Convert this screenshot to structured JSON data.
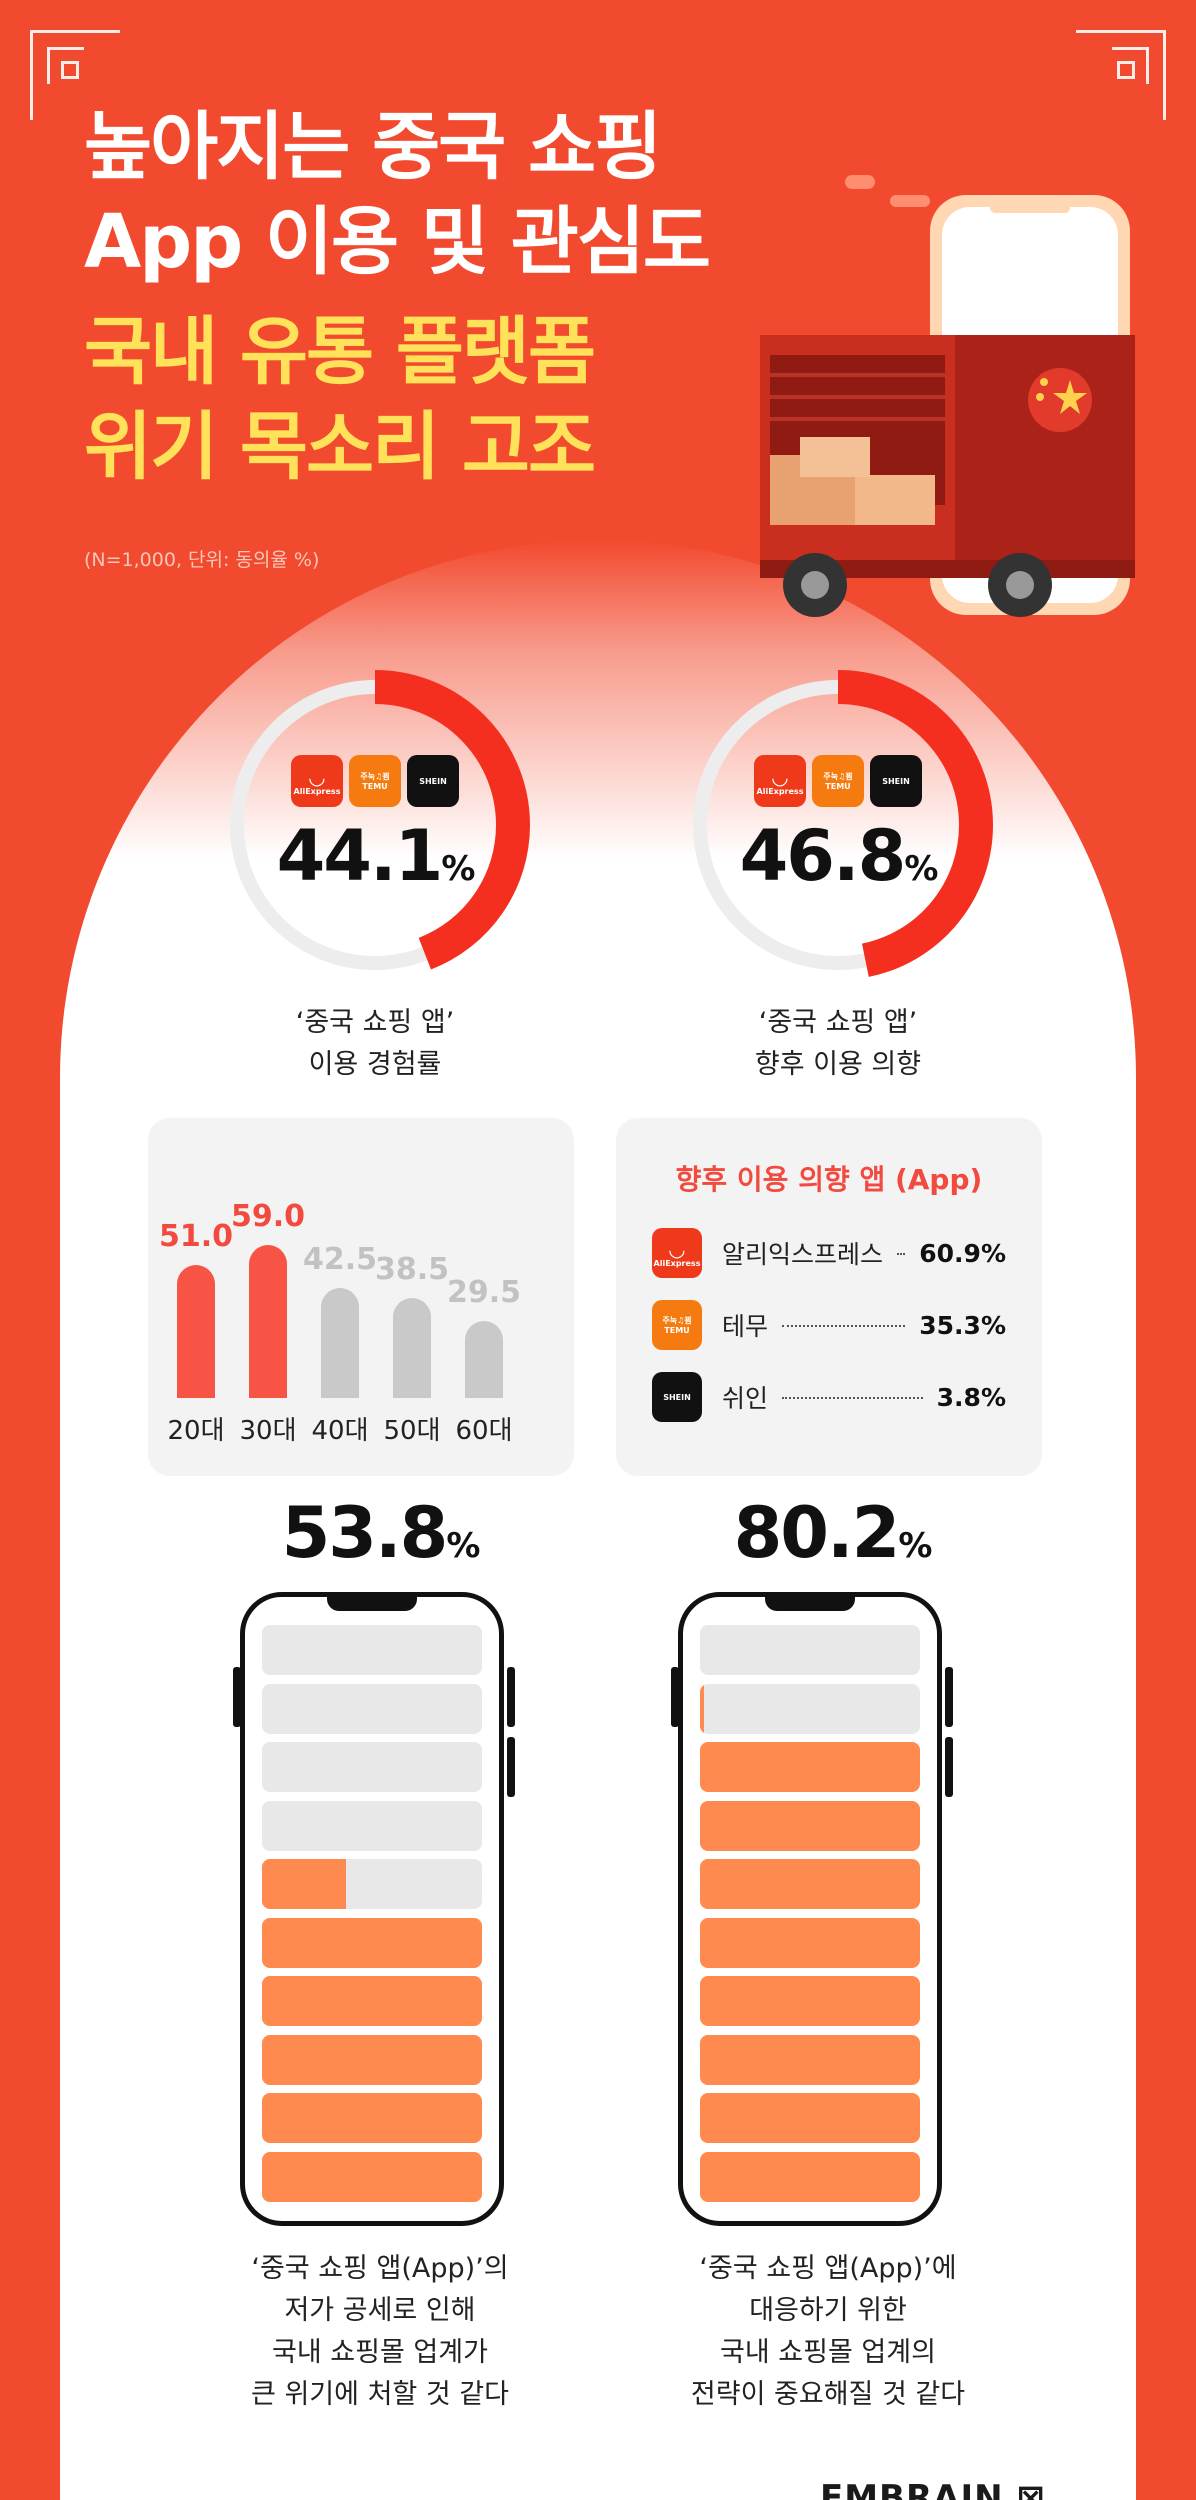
{
  "headline": {
    "line1": "높아지는 중국 쇼핑",
    "line2": "App 이용 및 관심도",
    "line3": "국내 유통 플랫폼",
    "line4": "위기 목소리 고조"
  },
  "note": "(N=1,000, 단위: 동의율 %)",
  "colors": {
    "background": "#f24a2e",
    "accent": "#ffe15a",
    "bar_highlight": "#f75445",
    "fill": "#ff8a4f"
  },
  "logos": {
    "ali_text": "AliExpress",
    "temu_text": "TEMU",
    "temu_top": "주눅♫꾐",
    "shein_text": "SHEIN"
  },
  "donut1": {
    "value": "44.1",
    "unit": "%",
    "fraction": 0.441,
    "caption_line1": "‘중국 쇼핑 앱’",
    "caption_line2": "이용 경험률"
  },
  "donut2": {
    "value": "46.8",
    "unit": "%",
    "fraction": 0.468,
    "caption_line1": "‘중국 쇼핑 앱’",
    "caption_line2": "향후 이용 의향"
  },
  "chart_data": {
    "type": "bar",
    "categories": [
      "20대",
      "30대",
      "40대",
      "50대",
      "60대"
    ],
    "values": [
      51.0,
      59.0,
      42.5,
      38.5,
      29.5
    ],
    "value_labels": [
      "51.0",
      "59.0",
      "42.5",
      "38.5",
      "29.5"
    ],
    "highlight": [
      true,
      true,
      false,
      false,
      false
    ],
    "ylim": [
      0,
      100
    ]
  },
  "app_intent": {
    "title": "향후 이용 의향 앱 (App)",
    "items": [
      {
        "name": "알리익스프레스",
        "value": "60.9%"
      },
      {
        "name": "테무",
        "value": "35.3%"
      },
      {
        "name": "쉬인",
        "value": "3.8%"
      }
    ]
  },
  "stat1": {
    "value": "53.8",
    "unit": "%",
    "fraction": 0.538,
    "caption": [
      "‘중국 쇼핑 앱(App)’의",
      "저가 공세로 인해",
      "국내 쇼핑몰 업계가",
      "큰 위기에 처할 것 같다"
    ]
  },
  "stat2": {
    "value": "80.2",
    "unit": "%",
    "fraction": 0.802,
    "caption": [
      "‘중국 쇼핑 앱(App)’에",
      "대응하기 위한",
      "국내 쇼핑몰 업계의",
      "전략이 중요해질 것 같다"
    ]
  },
  "brand": "EMBRAIN"
}
